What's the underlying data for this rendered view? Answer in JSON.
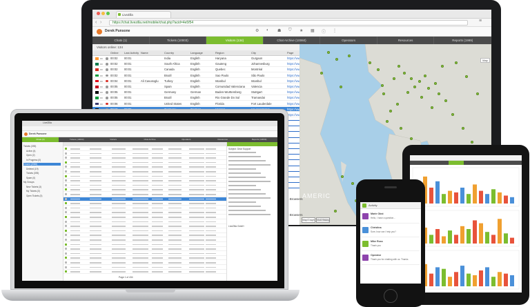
{
  "monitor": {
    "browser_tab": "LiveZilla",
    "url": "https://chat.livezilla.net/mobile/chat.php?acid=4e5f54",
    "operator_name": "Derek Punsone",
    "nav_tabs": [
      {
        "label": "Chats (1)",
        "active": false
      },
      {
        "label": "Tickets (10003)",
        "active": false
      },
      {
        "label": "Visitors (134)",
        "active": true
      },
      {
        "label": "Chat Archive (10060)",
        "active": false
      },
      {
        "label": "Operators",
        "active": false
      },
      {
        "label": "Resources",
        "active": false
      },
      {
        "label": "Reports (1999)",
        "active": false
      }
    ],
    "visitors_online": "Visitors online: 134",
    "columns": [
      "Online",
      "Last Activity",
      "Name",
      "Country",
      "Language",
      "Region",
      "City",
      "Page"
    ],
    "rows": [
      {
        "online": "00:02",
        "last": "00:01",
        "name": "",
        "country": "India",
        "language": "English",
        "region": "Haryana",
        "city": "Gurgaon",
        "page": "https://www.livezilla.n"
      },
      {
        "online": "00:02",
        "last": "00:01",
        "name": "",
        "country": "South Africa",
        "language": "English",
        "region": "Gauteng",
        "city": "Johannesburg",
        "page": "https://www.livezilla.n"
      },
      {
        "online": "00:02",
        "last": "00:01",
        "name": "",
        "country": "Canada",
        "language": "English",
        "region": "Quebec",
        "city": "Montréal",
        "page": "https://www.livezilla.n"
      },
      {
        "online": "00:02",
        "last": "00:01",
        "name": "",
        "country": "Brazil",
        "language": "English",
        "region": "Sao Paulo",
        "city": "São Paulo",
        "page": "https://www.livezilla.n"
      },
      {
        "online": "00:04",
        "last": "00:01",
        "name": "Ali Cavusoglu",
        "country": "Turkey",
        "language": "English",
        "region": "Istanbul",
        "city": "Istanbul",
        "page": "https://www.livezilla.n"
      },
      {
        "online": "00:05",
        "last": "00:01",
        "name": "",
        "country": "Spain",
        "language": "English",
        "region": "Comunidad Valenciana",
        "city": "Valencia",
        "page": "https://www.livezilla.n"
      },
      {
        "online": "00:05",
        "last": "00:01",
        "name": "",
        "country": "Germany",
        "language": "German",
        "region": "Baden-Wurttemberg",
        "city": "Stuttgart",
        "page": "https://www.livezilla.n"
      },
      {
        "online": "00:05",
        "last": "00:01",
        "name": "",
        "country": "Brazil",
        "language": "English",
        "region": "Rio Grande Do Sul",
        "city": "Tramandai",
        "page": "https://www.livezilla.n"
      },
      {
        "online": "00:06",
        "last": "00:01",
        "name": "",
        "country": "United States",
        "language": "English",
        "region": "Florida",
        "city": "Fort Lauderdale",
        "page": "https://www.livezilla.n"
      },
      {
        "online": "00:10",
        "last": "00:06",
        "name": "",
        "country": "Germany",
        "language": "German",
        "region": "Hessen",
        "city": "Heusenstamm",
        "page": "https://www.livezilla.n",
        "highlight": true
      },
      {
        "online": "00:11",
        "last": "00:11",
        "name": "",
        "country": "Germany",
        "language": "English",
        "region": "Bayern",
        "city": "Pfaffing",
        "page": "https://www.livezilla.n"
      }
    ],
    "map_button": "Map",
    "extra_links": [
      "4 Browsers",
      "2 Browsers"
    ],
    "map_label": "AMERIC",
    "map_tabs": [
      "Map/Graph",
      "Visit History"
    ]
  },
  "laptop": {
    "browser_tab": "LiveZilla",
    "operator_name": "Derek Punsone",
    "nav_tabs": [
      "Chats (4)",
      "Tickets (10003)",
      "Visitors",
      "Chat Archive",
      "Operators",
      "Resources",
      "Reports (10003)"
    ],
    "tree_items": [
      "Tickets (393)",
      "Active (4)",
      "Open (2)",
      "In Progress (0)",
      "Closed (2068)",
      "Deleted (19)",
      "Tickets (393)",
      "Spam (0)",
      "My Groups",
      "New Tickets (3)",
      "My Tickets (0)",
      "Open Tickets (3)"
    ],
    "pager": "Page 1 of 434",
    "ticket_preview_title": "Subject: Dear Support",
    "contact": "LiveZilla GmbH"
  },
  "tablet": {
    "title": "LiveZilla Reports"
  },
  "phone": {
    "title": "Activity",
    "messages": [
      {
        "name": "Marie Obst",
        "text": "Hello, I have a question..."
      },
      {
        "name": "Christina",
        "text": "Sure, how can I help you?"
      },
      {
        "name": "Mike Ross",
        "text": "Thank you"
      },
      {
        "name": "Operator",
        "text": "Thank you for chatting with us. Thanks"
      }
    ]
  },
  "colors": {
    "brand_green": "#7cbd2f",
    "dark_nav": "#4b4b4b",
    "highlight_blue": "#3d86d6",
    "map_water": "#a8cfe8",
    "land": "#dcdcd5"
  }
}
